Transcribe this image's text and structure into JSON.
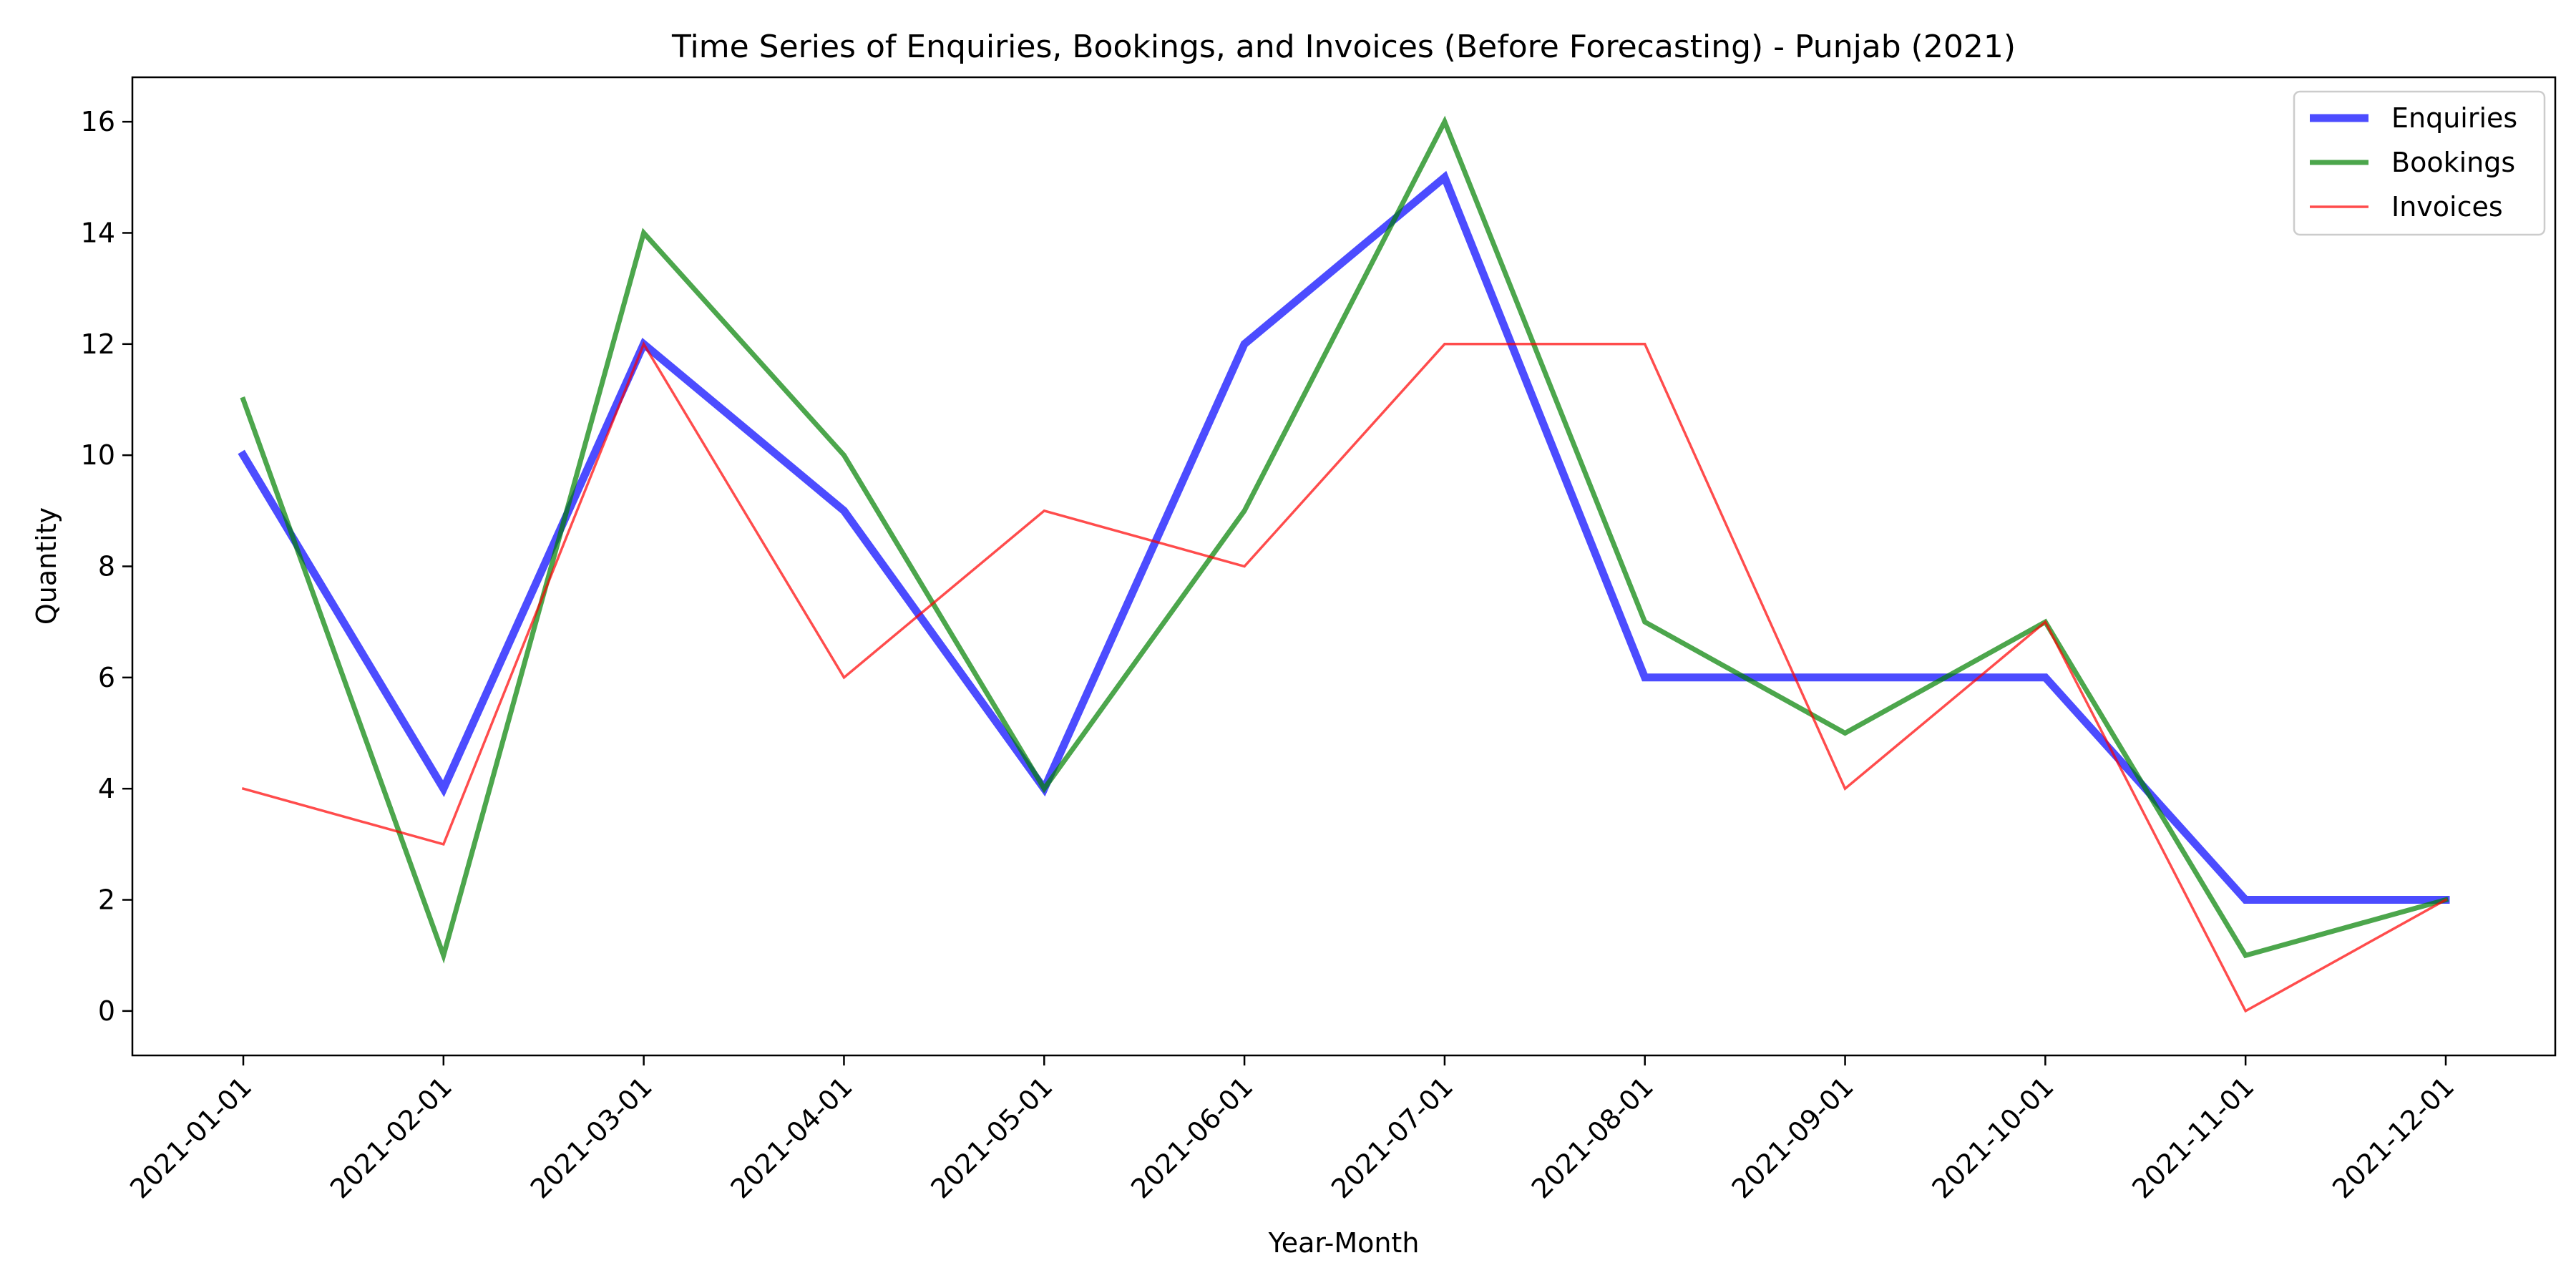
{
  "chart_data": {
    "type": "line",
    "title": "Time Series of Enquiries, Bookings, and Invoices (Before Forecasting) - Punjab (2021)",
    "xlabel": "Year-Month",
    "ylabel": "Quantity",
    "x": [
      "2021-01-01",
      "2021-02-01",
      "2021-03-01",
      "2021-04-01",
      "2021-05-01",
      "2021-06-01",
      "2021-07-01",
      "2021-08-01",
      "2021-09-01",
      "2021-10-01",
      "2021-11-01",
      "2021-12-01"
    ],
    "yticks": [
      0,
      2,
      4,
      6,
      8,
      10,
      12,
      14,
      16
    ],
    "ylim": [
      -0.8,
      16.8
    ],
    "grid": false,
    "legend_position": "top-right",
    "series": [
      {
        "name": "Enquiries",
        "color": "#0000ff",
        "values": [
          10,
          4,
          12,
          9,
          4,
          12,
          15,
          6,
          6,
          6,
          2,
          2
        ]
      },
      {
        "name": "Bookings",
        "color": "#008000",
        "values": [
          11,
          1,
          14,
          10,
          4,
          9,
          16,
          7,
          5,
          7,
          1,
          2
        ]
      },
      {
        "name": "Invoices",
        "color": "#ff0000",
        "values": [
          4,
          3,
          12,
          6,
          9,
          8,
          12,
          12,
          4,
          7,
          0,
          2
        ]
      }
    ]
  }
}
